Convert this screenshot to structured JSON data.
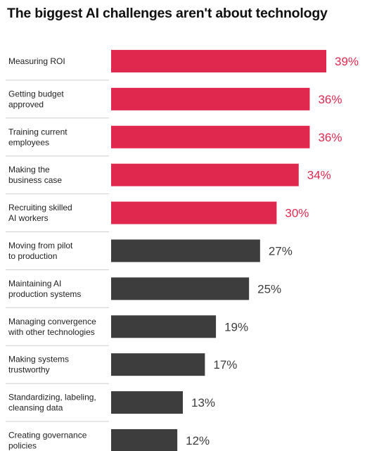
{
  "chart_data": {
    "type": "bar",
    "orientation": "horizontal",
    "title": "The biggest AI challenges aren't about technology",
    "xlabel": "",
    "ylabel": "",
    "xlim": [
      0,
      39
    ],
    "grid": false,
    "categories": [
      [
        "Measuring ROI"
      ],
      [
        "Getting budget",
        "approved"
      ],
      [
        "Training current",
        "employees"
      ],
      [
        "Making the",
        "business case"
      ],
      [
        "Recruiting skilled",
        "AI workers"
      ],
      [
        "Moving from pilot",
        "to production"
      ],
      [
        "Maintaining AI",
        "production systems"
      ],
      [
        "Managing convergence",
        "with other technologies"
      ],
      [
        "Making systems",
        "trustworthy"
      ],
      [
        "Standardizing, labeling,",
        "cleansing data"
      ],
      [
        "Creating governance",
        "policies"
      ]
    ],
    "values": [
      39,
      36,
      36,
      34,
      30,
      27,
      25,
      19,
      17,
      13,
      12
    ],
    "value_labels": [
      "39%",
      "36%",
      "36%",
      "34%",
      "30%",
      "27%",
      "25%",
      "19%",
      "17%",
      "13%",
      "12%"
    ],
    "colors": [
      "#e0284f",
      "#e0284f",
      "#e0284f",
      "#e0284f",
      "#e0284f",
      "#3d3d3d",
      "#3d3d3d",
      "#3d3d3d",
      "#3d3d3d",
      "#3d3d3d",
      "#3d3d3d"
    ],
    "separator_color": "#cfcfcf"
  }
}
